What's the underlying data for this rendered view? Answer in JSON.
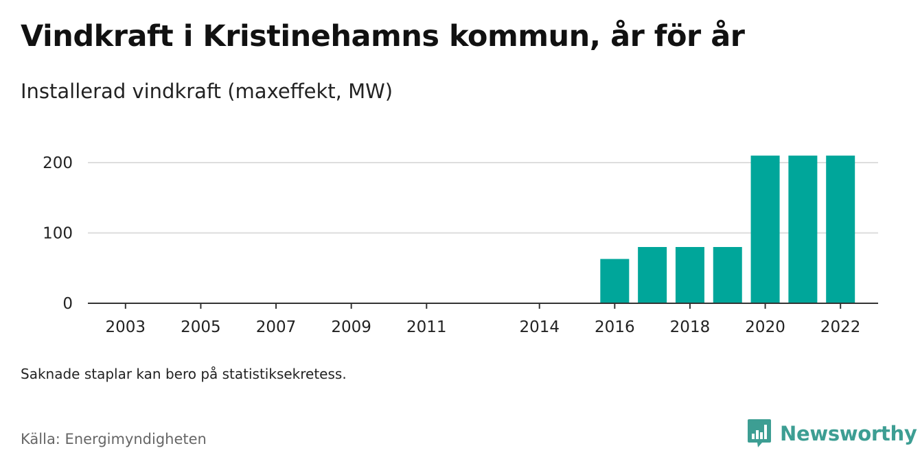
{
  "header": {
    "title": "Vindkraft i Kristinehamns kommun, år för år",
    "subtitle": "Installerad vindkraft (maxeffekt, MW)"
  },
  "footer": {
    "note": "Saknade staplar kan bero på statistiksekretess.",
    "source": "Källa: Energimyndigheten",
    "brand": "Newsworthy",
    "brand_icon": "newsworthy-logo-icon"
  },
  "colors": {
    "bar": "#00a69a",
    "grid": "#dddddd",
    "axis": "#333333",
    "brand": "#3d9e93"
  },
  "chart_data": {
    "type": "bar",
    "categories": [
      "2016",
      "2017",
      "2018",
      "2019",
      "2020",
      "2021",
      "2022"
    ],
    "values": [
      63,
      80,
      80,
      80,
      210,
      210,
      210
    ],
    "x_range": [
      2002,
      2023
    ],
    "x_ticks": [
      "2003",
      "2005",
      "2007",
      "2009",
      "2011",
      "2014",
      "2016",
      "2018",
      "2020",
      "2022"
    ],
    "y_ticks": [
      0,
      100,
      200
    ],
    "ylim": [
      0,
      210
    ],
    "grid": true,
    "xlabel": "",
    "ylabel": ""
  }
}
